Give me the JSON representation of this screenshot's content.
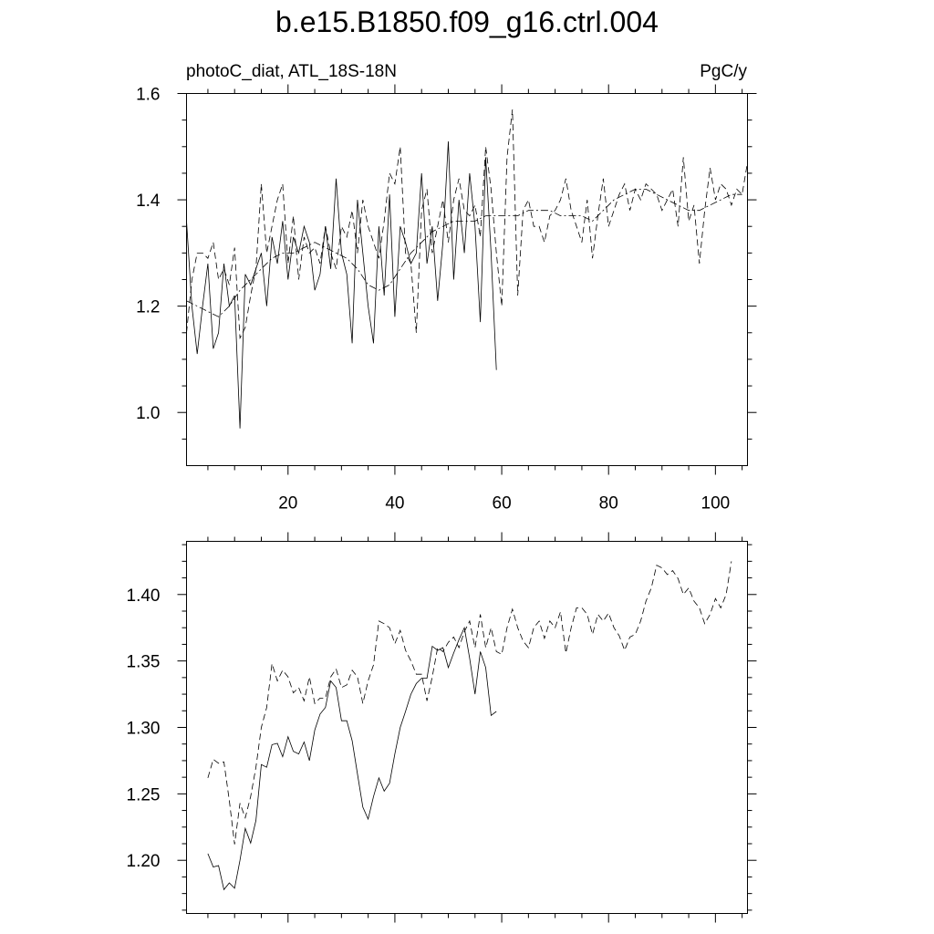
{
  "figure": {
    "title": "b.e15.B1850.f09_g16.ctrl.004"
  },
  "chart_data": [
    {
      "type": "line",
      "left_label": "photoC_diat, ATL_18S-18N",
      "right_label": "PgC/y",
      "xlim": [
        1,
        106
      ],
      "ylim": [
        0.9,
        1.6
      ],
      "x_ticks": [
        20,
        40,
        60,
        80,
        100
      ],
      "y_ticks": [
        1.0,
        1.2,
        1.4,
        1.6
      ],
      "y_tick_labels": [
        "1.0",
        "1.2",
        "1.4",
        "1.6"
      ],
      "series": [
        {
          "style": "solid",
          "x": [
            1,
            2,
            3,
            4,
            5,
            6,
            7,
            8,
            9,
            10,
            11,
            12,
            13,
            14,
            15,
            16,
            17,
            18,
            19,
            20,
            21,
            22,
            23,
            24,
            25,
            26,
            27,
            28,
            29,
            30,
            31,
            32,
            33,
            34,
            35,
            36,
            37,
            38,
            39,
            40,
            41,
            42,
            43,
            44,
            45,
            46,
            47,
            48,
            49,
            50,
            51,
            52,
            53,
            54,
            55,
            56,
            57,
            58,
            59
          ],
          "values": [
            1.36,
            1.2,
            1.11,
            1.2,
            1.28,
            1.12,
            1.15,
            1.28,
            1.2,
            1.22,
            0.97,
            1.26,
            1.24,
            1.27,
            1.3,
            1.2,
            1.33,
            1.28,
            1.36,
            1.25,
            1.33,
            1.3,
            1.35,
            1.32,
            1.23,
            1.26,
            1.35,
            1.27,
            1.44,
            1.3,
            1.26,
            1.13,
            1.4,
            1.3,
            1.2,
            1.13,
            1.35,
            1.22,
            1.41,
            1.18,
            1.35,
            1.32,
            1.28,
            1.3,
            1.45,
            1.28,
            1.35,
            1.21,
            1.32,
            1.51,
            1.25,
            1.4,
            1.3,
            1.45,
            1.35,
            1.17,
            1.48,
            1.3,
            1.08
          ]
        },
        {
          "style": "dashed",
          "x": [
            1,
            2,
            3,
            4,
            5,
            6,
            7,
            8,
            9,
            10,
            11,
            12,
            13,
            14,
            15,
            16,
            17,
            18,
            19,
            20,
            21,
            22,
            23,
            24,
            25,
            26,
            27,
            28,
            29,
            30,
            31,
            32,
            33,
            34,
            35,
            36,
            37,
            38,
            39,
            40,
            41,
            42,
            43,
            44,
            45,
            46,
            47,
            48,
            49,
            50,
            51,
            52,
            53,
            54,
            55,
            56,
            57,
            58,
            59,
            60,
            61,
            62,
            63,
            64,
            65,
            66,
            67,
            68,
            69,
            70,
            71,
            72,
            73,
            74,
            75,
            76,
            77,
            78,
            79,
            80,
            81,
            82,
            83,
            84,
            85,
            86,
            87,
            88,
            89,
            90,
            91,
            92,
            93,
            94,
            95,
            96,
            97,
            98,
            99,
            100,
            101,
            102,
            103,
            104,
            105,
            106
          ],
          "values": [
            1.15,
            1.25,
            1.3,
            1.3,
            1.29,
            1.32,
            1.25,
            1.27,
            1.24,
            1.31,
            1.14,
            1.16,
            1.22,
            1.27,
            1.43,
            1.3,
            1.35,
            1.4,
            1.43,
            1.28,
            1.37,
            1.25,
            1.33,
            1.3,
            1.31,
            1.28,
            1.35,
            1.3,
            1.27,
            1.35,
            1.33,
            1.38,
            1.3,
            1.4,
            1.35,
            1.32,
            1.29,
            1.36,
            1.45,
            1.43,
            1.5,
            1.3,
            1.28,
            1.15,
            1.38,
            1.42,
            1.3,
            1.35,
            1.4,
            1.32,
            1.4,
            1.44,
            1.38,
            1.37,
            1.39,
            1.33,
            1.5,
            1.42,
            1.3,
            1.2,
            1.48,
            1.57,
            1.22,
            1.38,
            1.4,
            1.35,
            1.35,
            1.32,
            1.37,
            1.38,
            1.4,
            1.44,
            1.38,
            1.35,
            1.32,
            1.4,
            1.29,
            1.37,
            1.44,
            1.35,
            1.38,
            1.41,
            1.43,
            1.38,
            1.42,
            1.4,
            1.43,
            1.42,
            1.41,
            1.38,
            1.4,
            1.42,
            1.35,
            1.48,
            1.36,
            1.39,
            1.28,
            1.38,
            1.46,
            1.4,
            1.43,
            1.42,
            1.39,
            1.42,
            1.41,
            1.47
          ]
        },
        {
          "style": "dash-dot",
          "x": [
            1,
            3,
            5,
            7,
            9,
            11,
            13,
            15,
            17,
            19,
            21,
            23,
            25,
            27,
            29,
            31,
            33,
            35,
            37,
            39,
            41,
            43,
            45,
            47,
            49,
            51,
            53,
            55,
            57,
            59,
            61,
            63,
            65,
            67,
            69,
            71,
            73,
            75,
            77,
            79,
            81,
            83,
            85,
            87,
            89,
            91,
            93,
            95,
            97,
            99,
            101,
            103,
            105
          ],
          "values": [
            1.21,
            1.2,
            1.19,
            1.18,
            1.2,
            1.23,
            1.25,
            1.27,
            1.29,
            1.3,
            1.3,
            1.31,
            1.32,
            1.31,
            1.3,
            1.29,
            1.27,
            1.24,
            1.23,
            1.24,
            1.27,
            1.3,
            1.32,
            1.34,
            1.35,
            1.36,
            1.36,
            1.36,
            1.37,
            1.37,
            1.37,
            1.37,
            1.38,
            1.38,
            1.38,
            1.37,
            1.37,
            1.37,
            1.36,
            1.38,
            1.4,
            1.41,
            1.42,
            1.42,
            1.41,
            1.4,
            1.39,
            1.38,
            1.38,
            1.39,
            1.4,
            1.41,
            1.41
          ]
        }
      ]
    },
    {
      "type": "line",
      "xlim": [
        1,
        106
      ],
      "ylim": [
        1.16,
        1.44
      ],
      "x_ticks": [
        20,
        40,
        60,
        80,
        100
      ],
      "y_ticks": [
        1.2,
        1.25,
        1.3,
        1.35,
        1.4
      ],
      "y_tick_labels": [
        "1.20",
        "1.25",
        "1.30",
        "1.35",
        "1.40"
      ],
      "series": [
        {
          "style": "solid",
          "x": [
            5,
            6,
            7,
            8,
            9,
            10,
            11,
            12,
            13,
            14,
            15,
            16,
            17,
            18,
            19,
            20,
            21,
            22,
            23,
            24,
            25,
            26,
            27,
            28,
            29,
            30,
            31,
            32,
            33,
            34,
            35,
            36,
            37,
            38,
            39,
            40,
            41,
            42,
            43,
            44,
            45,
            46,
            47,
            48,
            49,
            50,
            51,
            52,
            53,
            54,
            55,
            56,
            57,
            58,
            59
          ],
          "values": [
            1.205,
            1.195,
            1.196,
            1.178,
            1.183,
            1.179,
            1.2,
            1.224,
            1.213,
            1.23,
            1.272,
            1.27,
            1.287,
            1.288,
            1.278,
            1.293,
            1.282,
            1.28,
            1.289,
            1.275,
            1.298,
            1.31,
            1.315,
            1.335,
            1.33,
            1.305,
            1.305,
            1.29,
            1.265,
            1.24,
            1.231,
            1.248,
            1.262,
            1.252,
            1.258,
            1.28,
            1.3,
            1.312,
            1.325,
            1.333,
            1.337,
            1.337,
            1.361,
            1.358,
            1.36,
            1.345,
            1.356,
            1.366,
            1.375,
            1.352,
            1.325,
            1.357,
            1.345,
            1.309,
            1.312
          ]
        },
        {
          "style": "dashed",
          "x": [
            5,
            6,
            7,
            8,
            9,
            10,
            11,
            12,
            13,
            14,
            15,
            16,
            17,
            18,
            19,
            20,
            21,
            22,
            23,
            24,
            25,
            26,
            27,
            28,
            29,
            30,
            31,
            32,
            33,
            34,
            35,
            36,
            37,
            38,
            39,
            40,
            41,
            42,
            43,
            44,
            45,
            46,
            47,
            48,
            49,
            50,
            51,
            52,
            53,
            54,
            55,
            56,
            57,
            58,
            59,
            60,
            61,
            62,
            63,
            64,
            65,
            66,
            67,
            68,
            69,
            70,
            71,
            72,
            73,
            74,
            75,
            76,
            77,
            78,
            79,
            80,
            81,
            82,
            83,
            84,
            85,
            86,
            87,
            88,
            89,
            90,
            91,
            92,
            93,
            94,
            95,
            96,
            97,
            98,
            99,
            100,
            101,
            102,
            103
          ],
          "values": [
            1.262,
            1.276,
            1.273,
            1.274,
            1.245,
            1.212,
            1.243,
            1.232,
            1.248,
            1.27,
            1.3,
            1.315,
            1.348,
            1.335,
            1.343,
            1.338,
            1.326,
            1.33,
            1.32,
            1.338,
            1.318,
            1.322,
            1.322,
            1.338,
            1.344,
            1.33,
            1.332,
            1.343,
            1.338,
            1.318,
            1.335,
            1.347,
            1.38,
            1.378,
            1.375,
            1.363,
            1.373,
            1.358,
            1.35,
            1.34,
            1.34,
            1.32,
            1.338,
            1.36,
            1.357,
            1.364,
            1.368,
            1.36,
            1.372,
            1.38,
            1.36,
            1.385,
            1.36,
            1.375,
            1.357,
            1.355,
            1.375,
            1.389,
            1.375,
            1.365,
            1.36,
            1.375,
            1.38,
            1.367,
            1.38,
            1.375,
            1.387,
            1.356,
            1.375,
            1.39,
            1.39,
            1.385,
            1.37,
            1.385,
            1.38,
            1.386,
            1.375,
            1.369,
            1.358,
            1.368,
            1.37,
            1.38,
            1.395,
            1.405,
            1.422,
            1.42,
            1.415,
            1.418,
            1.412,
            1.4,
            1.405,
            1.395,
            1.39,
            1.378,
            1.385,
            1.397,
            1.39,
            1.4,
            1.425
          ]
        }
      ]
    }
  ]
}
